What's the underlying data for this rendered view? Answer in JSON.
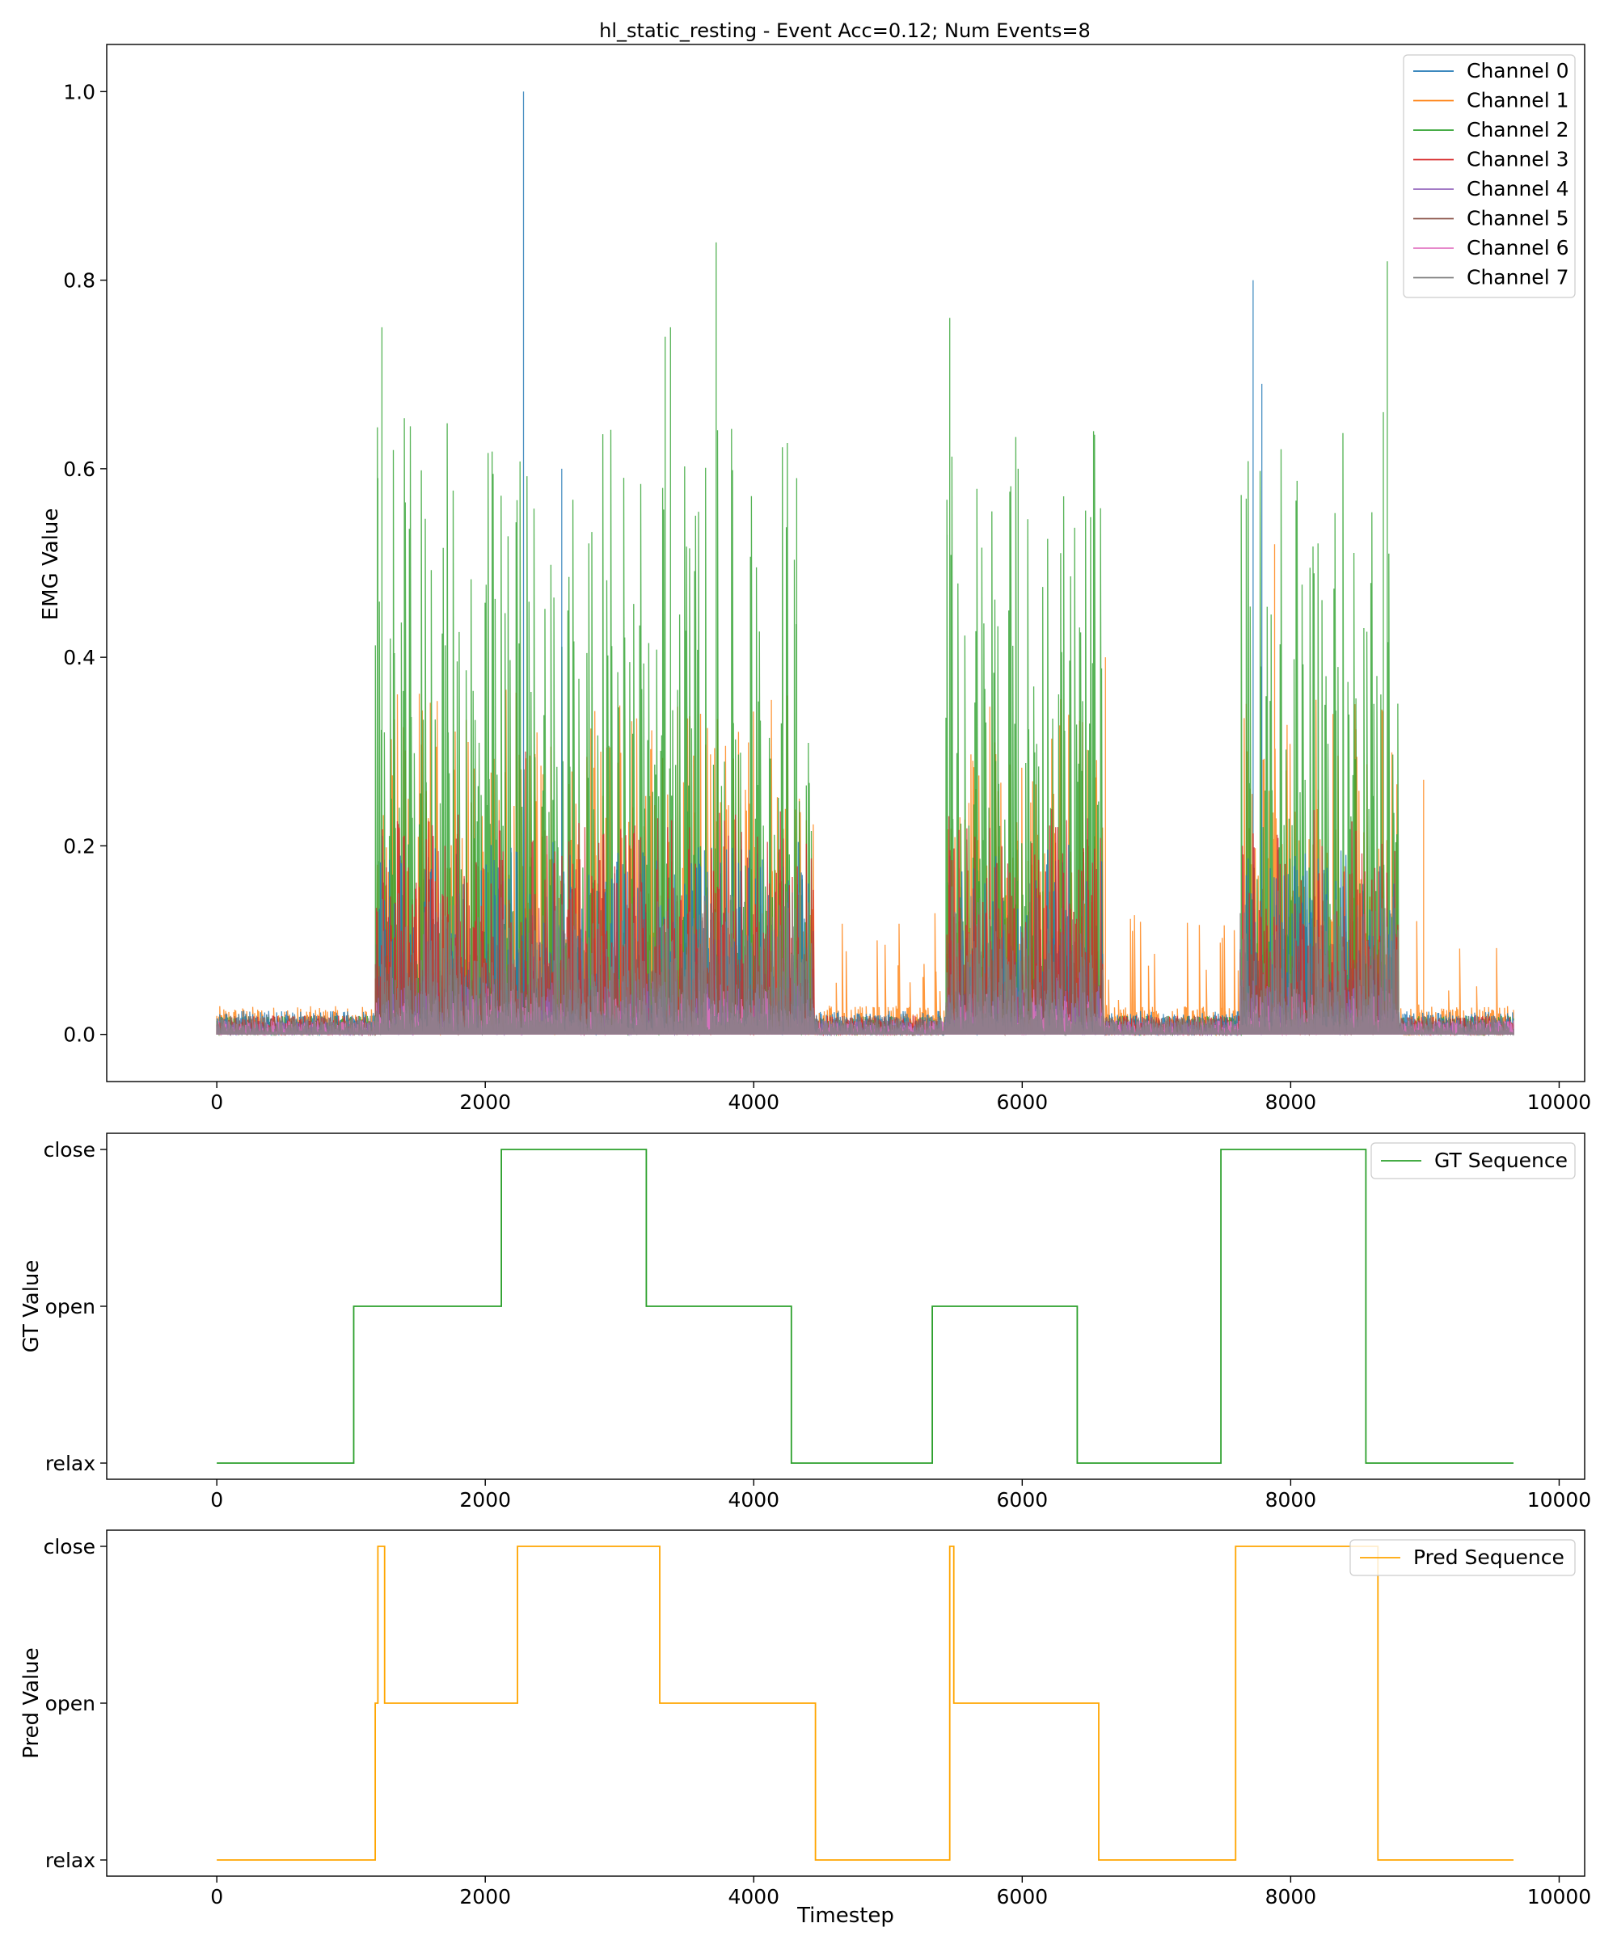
{
  "chart_data": [
    {
      "type": "line",
      "title": "hl_static_resting - Event Acc=0.12; Num Events=8",
      "ylabel": "EMG Value",
      "xlabel": "",
      "xlim": [
        -820,
        10190
      ],
      "ylim": [
        -0.05,
        1.05
      ],
      "xticks": [
        0,
        2000,
        4000,
        6000,
        8000,
        10000
      ],
      "xtick_labels": [
        "0",
        "2000",
        "4000",
        "6000",
        "8000",
        "10000"
      ],
      "yticks": [
        0.0,
        0.2,
        0.4,
        0.6,
        0.8,
        1.0
      ],
      "ytick_labels": [
        "0.0",
        "0.2",
        "0.4",
        "0.6",
        "0.8",
        "1.0"
      ],
      "legend_position": "top-right",
      "grid": false,
      "series": [
        {
          "name": "Channel 0",
          "color": "#1f77b4"
        },
        {
          "name": "Channel 1",
          "color": "#ff7f0e"
        },
        {
          "name": "Channel 2",
          "color": "#2ca02c"
        },
        {
          "name": "Channel 3",
          "color": "#d62728"
        },
        {
          "name": "Channel 4",
          "color": "#9467bd"
        },
        {
          "name": "Channel 5",
          "color": "#8c564b"
        },
        {
          "name": "Channel 6",
          "color": "#e377c2"
        },
        {
          "name": "Channel 7",
          "color": "#7f7f7f"
        }
      ],
      "peaks": [
        {
          "series": "Channel 0",
          "x": 2285,
          "y": 1.0
        },
        {
          "series": "Channel 0",
          "x": 7720,
          "y": 0.8
        },
        {
          "series": "Channel 0",
          "x": 7785,
          "y": 0.69
        },
        {
          "series": "Channel 0",
          "x": 2570,
          "y": 0.6
        },
        {
          "series": "Channel 1",
          "x": 7880,
          "y": 0.52
        },
        {
          "series": "Channel 1",
          "x": 6620,
          "y": 0.4
        },
        {
          "series": "Channel 1",
          "x": 8990,
          "y": 0.27
        },
        {
          "series": "Channel 2",
          "x": 1230,
          "y": 0.75
        },
        {
          "series": "Channel 2",
          "x": 1200,
          "y": 0.59
        },
        {
          "series": "Channel 2",
          "x": 3380,
          "y": 0.75
        },
        {
          "series": "Channel 2",
          "x": 3340,
          "y": 0.74
        },
        {
          "series": "Channel 2",
          "x": 3720,
          "y": 0.84
        },
        {
          "series": "Channel 2",
          "x": 5460,
          "y": 0.76
        },
        {
          "series": "Channel 2",
          "x": 5440,
          "y": 0.53
        },
        {
          "series": "Channel 2",
          "x": 5970,
          "y": 0.6
        },
        {
          "series": "Channel 2",
          "x": 4320,
          "y": 0.59
        },
        {
          "series": "Channel 2",
          "x": 8720,
          "y": 0.82
        },
        {
          "series": "Channel 2",
          "x": 8690,
          "y": 0.66
        },
        {
          "series": "Channel 3",
          "x": 2300,
          "y": 0.3
        },
        {
          "series": "Channel 3",
          "x": 1700,
          "y": 0.2
        },
        {
          "series": "Channel 3",
          "x": 7640,
          "y": 0.2
        }
      ],
      "bursts": [
        {
          "start": 1180,
          "end": 2150,
          "y_max": 0.75
        },
        {
          "start": 2150,
          "end": 3200,
          "y_max": 1.0
        },
        {
          "start": 3200,
          "end": 4450,
          "y_max": 0.84
        },
        {
          "start": 5430,
          "end": 6600,
          "y_max": 0.76
        },
        {
          "start": 7620,
          "end": 8800,
          "y_max": 0.82
        }
      ],
      "x_max": 9660
    },
    {
      "type": "line",
      "title": "",
      "ylabel": "GT Value",
      "xlabel": "",
      "xlim": [
        -820,
        10190
      ],
      "categories_y": [
        "relax",
        "open",
        "close"
      ],
      "xticks": [
        0,
        2000,
        4000,
        6000,
        8000,
        10000
      ],
      "xtick_labels": [
        "0",
        "2000",
        "4000",
        "6000",
        "8000",
        "10000"
      ],
      "legend_position": "top-right",
      "series": [
        {
          "name": "GT Sequence",
          "color": "#2ca02c",
          "steps": [
            {
              "x": 0,
              "y": "relax"
            },
            {
              "x": 1020,
              "y": "open"
            },
            {
              "x": 2120,
              "y": "close"
            },
            {
              "x": 3200,
              "y": "open"
            },
            {
              "x": 4280,
              "y": "relax"
            },
            {
              "x": 5330,
              "y": "open"
            },
            {
              "x": 6410,
              "y": "relax"
            },
            {
              "x": 7480,
              "y": "close"
            },
            {
              "x": 8560,
              "y": "relax"
            },
            {
              "x": 9660,
              "y": "relax"
            }
          ]
        }
      ]
    },
    {
      "type": "line",
      "title": "",
      "ylabel": "Pred Value",
      "xlabel": "Timestep",
      "xlim": [
        -820,
        10190
      ],
      "categories_y": [
        "relax",
        "open",
        "close"
      ],
      "xticks": [
        0,
        2000,
        4000,
        6000,
        8000,
        10000
      ],
      "xtick_labels": [
        "0",
        "2000",
        "4000",
        "6000",
        "8000",
        "10000"
      ],
      "legend_position": "top-right",
      "series": [
        {
          "name": "Pred Sequence",
          "color": "#ffa500",
          "steps": [
            {
              "x": 0,
              "y": "relax"
            },
            {
              "x": 1180,
              "y": "open"
            },
            {
              "x": 1200,
              "y": "close"
            },
            {
              "x": 1250,
              "y": "open"
            },
            {
              "x": 2240,
              "y": "close"
            },
            {
              "x": 3300,
              "y": "open"
            },
            {
              "x": 4460,
              "y": "relax"
            },
            {
              "x": 5460,
              "y": "close"
            },
            {
              "x": 5490,
              "y": "open"
            },
            {
              "x": 6570,
              "y": "relax"
            },
            {
              "x": 7590,
              "y": "close"
            },
            {
              "x": 8650,
              "y": "relax"
            },
            {
              "x": 9660,
              "y": "relax"
            }
          ]
        }
      ]
    }
  ]
}
